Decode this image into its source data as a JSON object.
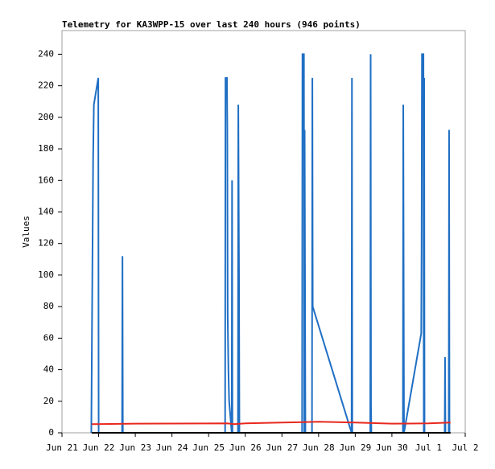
{
  "chart_data": {
    "type": "line",
    "title": "Telemetry for KA3WPP-15 over last 240 hours (946 points)",
    "ylabel": "Values",
    "xlim": [
      0,
      11
    ],
    "xticks": [
      {
        "value": 0,
        "label": "Jun 21"
      },
      {
        "value": 1,
        "label": "Jun 22"
      },
      {
        "value": 2,
        "label": "Jun 23"
      },
      {
        "value": 3,
        "label": "Jun 24"
      },
      {
        "value": 4,
        "label": "Jun 25"
      },
      {
        "value": 5,
        "label": "Jun 26"
      },
      {
        "value": 6,
        "label": "Jun 27"
      },
      {
        "value": 7,
        "label": "Jun 28"
      },
      {
        "value": 8,
        "label": "Jun 29"
      },
      {
        "value": 9,
        "label": "Jun 30"
      },
      {
        "value": 10,
        "label": "Jul 1"
      },
      {
        "value": 11,
        "label": "Jul 2"
      }
    ],
    "ylim": [
      0,
      255
    ],
    "yticks": [
      0,
      20,
      40,
      60,
      80,
      100,
      120,
      140,
      160,
      180,
      200,
      220,
      240
    ],
    "grid": false,
    "series": [
      {
        "color": "#1f6fc4",
        "x": [
          0.8,
          0.81,
          0.83,
          0.85,
          0.87,
          0.99,
          1.0,
          1.64,
          1.65,
          1.66,
          4.45,
          4.46,
          4.5,
          4.51,
          4.52,
          4.54,
          4.56,
          4.63,
          4.64,
          4.65,
          4.8,
          4.81,
          4.83,
          4.84,
          6.55,
          6.56,
          6.6,
          6.61,
          6.62,
          6.64,
          6.82,
          6.83,
          6.84,
          7.9,
          7.91,
          7.92,
          8.41,
          8.42,
          8.43,
          8.44,
          9.3,
          9.31,
          9.33,
          9.8,
          9.81,
          9.82,
          9.86,
          9.87,
          9.88,
          9.89,
          10.44,
          10.45,
          10.46,
          10.55,
          10.56,
          10.57
        ],
        "values": [
          0,
          35,
          105,
          175,
          208,
          225,
          0,
          0,
          112,
          0,
          0,
          225,
          225,
          193,
          75,
          40,
          20,
          0,
          160,
          0,
          0,
          208,
          97,
          0,
          0,
          240,
          240,
          0,
          192,
          0,
          0,
          225,
          80,
          0,
          225,
          0,
          0,
          240,
          17,
          0,
          0,
          208,
          0,
          63,
          120,
          240,
          240,
          0,
          225,
          0,
          0,
          48,
          0,
          0,
          192,
          0
        ]
      },
      {
        "color": "#e8281e",
        "x": [
          0.81,
          2,
          4.5,
          4.7,
          5,
          6,
          7,
          8,
          9,
          10,
          10.6
        ],
        "values": [
          5.5,
          5.8,
          6,
          5.5,
          6,
          6.5,
          7,
          6.5,
          5.8,
          6,
          6.5
        ]
      },
      {
        "color": "#000000",
        "x": [
          0.81,
          10.6
        ],
        "values": [
          0,
          0
        ]
      }
    ]
  }
}
